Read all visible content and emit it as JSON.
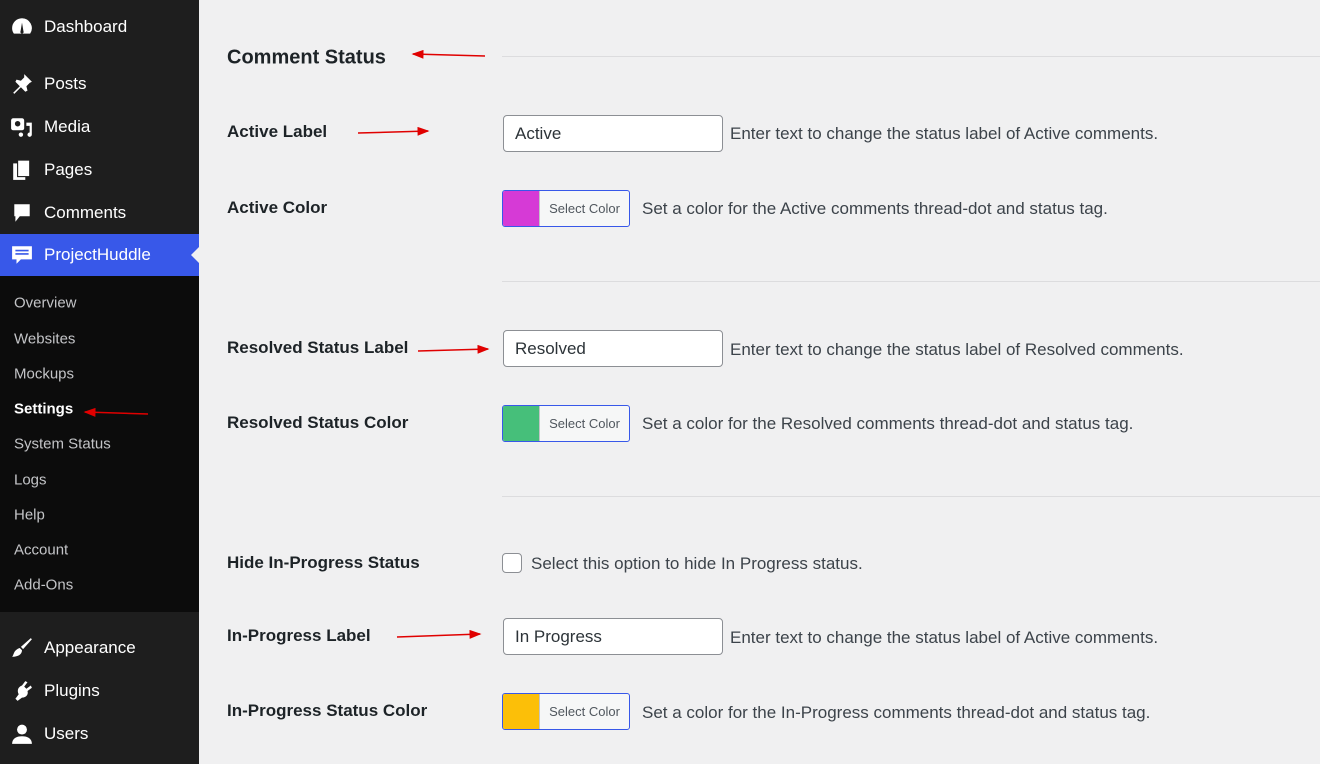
{
  "sidebar": {
    "items": [
      {
        "label": "Dashboard",
        "icon": "dashboard-icon"
      },
      {
        "label": "Posts",
        "icon": "pin-icon"
      },
      {
        "label": "Media",
        "icon": "media-icon"
      },
      {
        "label": "Pages",
        "icon": "pages-icon"
      },
      {
        "label": "Comments",
        "icon": "comment-icon"
      },
      {
        "label": "ProjectHuddle",
        "icon": "projecthuddle-icon",
        "active": true
      },
      {
        "label": "Appearance",
        "icon": "paintbrush-icon"
      },
      {
        "label": "Plugins",
        "icon": "plugin-icon"
      },
      {
        "label": "Users",
        "icon": "user-icon"
      }
    ],
    "submenu": [
      "Overview",
      "Websites",
      "Mockups",
      "Settings",
      "System Status",
      "Logs",
      "Help",
      "Account",
      "Add-Ons"
    ],
    "current_submenu": "Settings"
  },
  "main": {
    "section_title": "Comment Status",
    "active_label": {
      "label": "Active Label",
      "value": "Active",
      "desc": "Enter text to change the status label of Active comments."
    },
    "active_color": {
      "label": "Active Color",
      "button": "Select Color",
      "color": "#d63ad6",
      "desc": "Set a color for the Active comments thread-dot and status tag."
    },
    "resolved_label": {
      "label": "Resolved Status Label",
      "value": "Resolved",
      "desc": "Enter text to change the status label of Resolved comments."
    },
    "resolved_color": {
      "label": "Resolved Status Color",
      "button": "Select Color",
      "color": "#46bf7a",
      "desc": "Set a color for the Resolved comments thread-dot and status tag."
    },
    "hide_inprogress": {
      "label": "Hide In-Progress Status",
      "checked": false,
      "desc": "Select this option to hide In Progress status."
    },
    "inprogress_label": {
      "label": "In-Progress Label",
      "value": "In Progress",
      "desc": "Enter text to change the status label of Active comments."
    },
    "inprogress_color": {
      "label": "In-Progress Status Color",
      "button": "Select Color",
      "color": "#fcbf08",
      "desc": "Set a color for the In-Progress comments thread-dot and status tag."
    }
  },
  "colors": {
    "sidebar": "#1e1e1e",
    "accent": "#3858e9",
    "annotation_arrow": "#e00000"
  }
}
